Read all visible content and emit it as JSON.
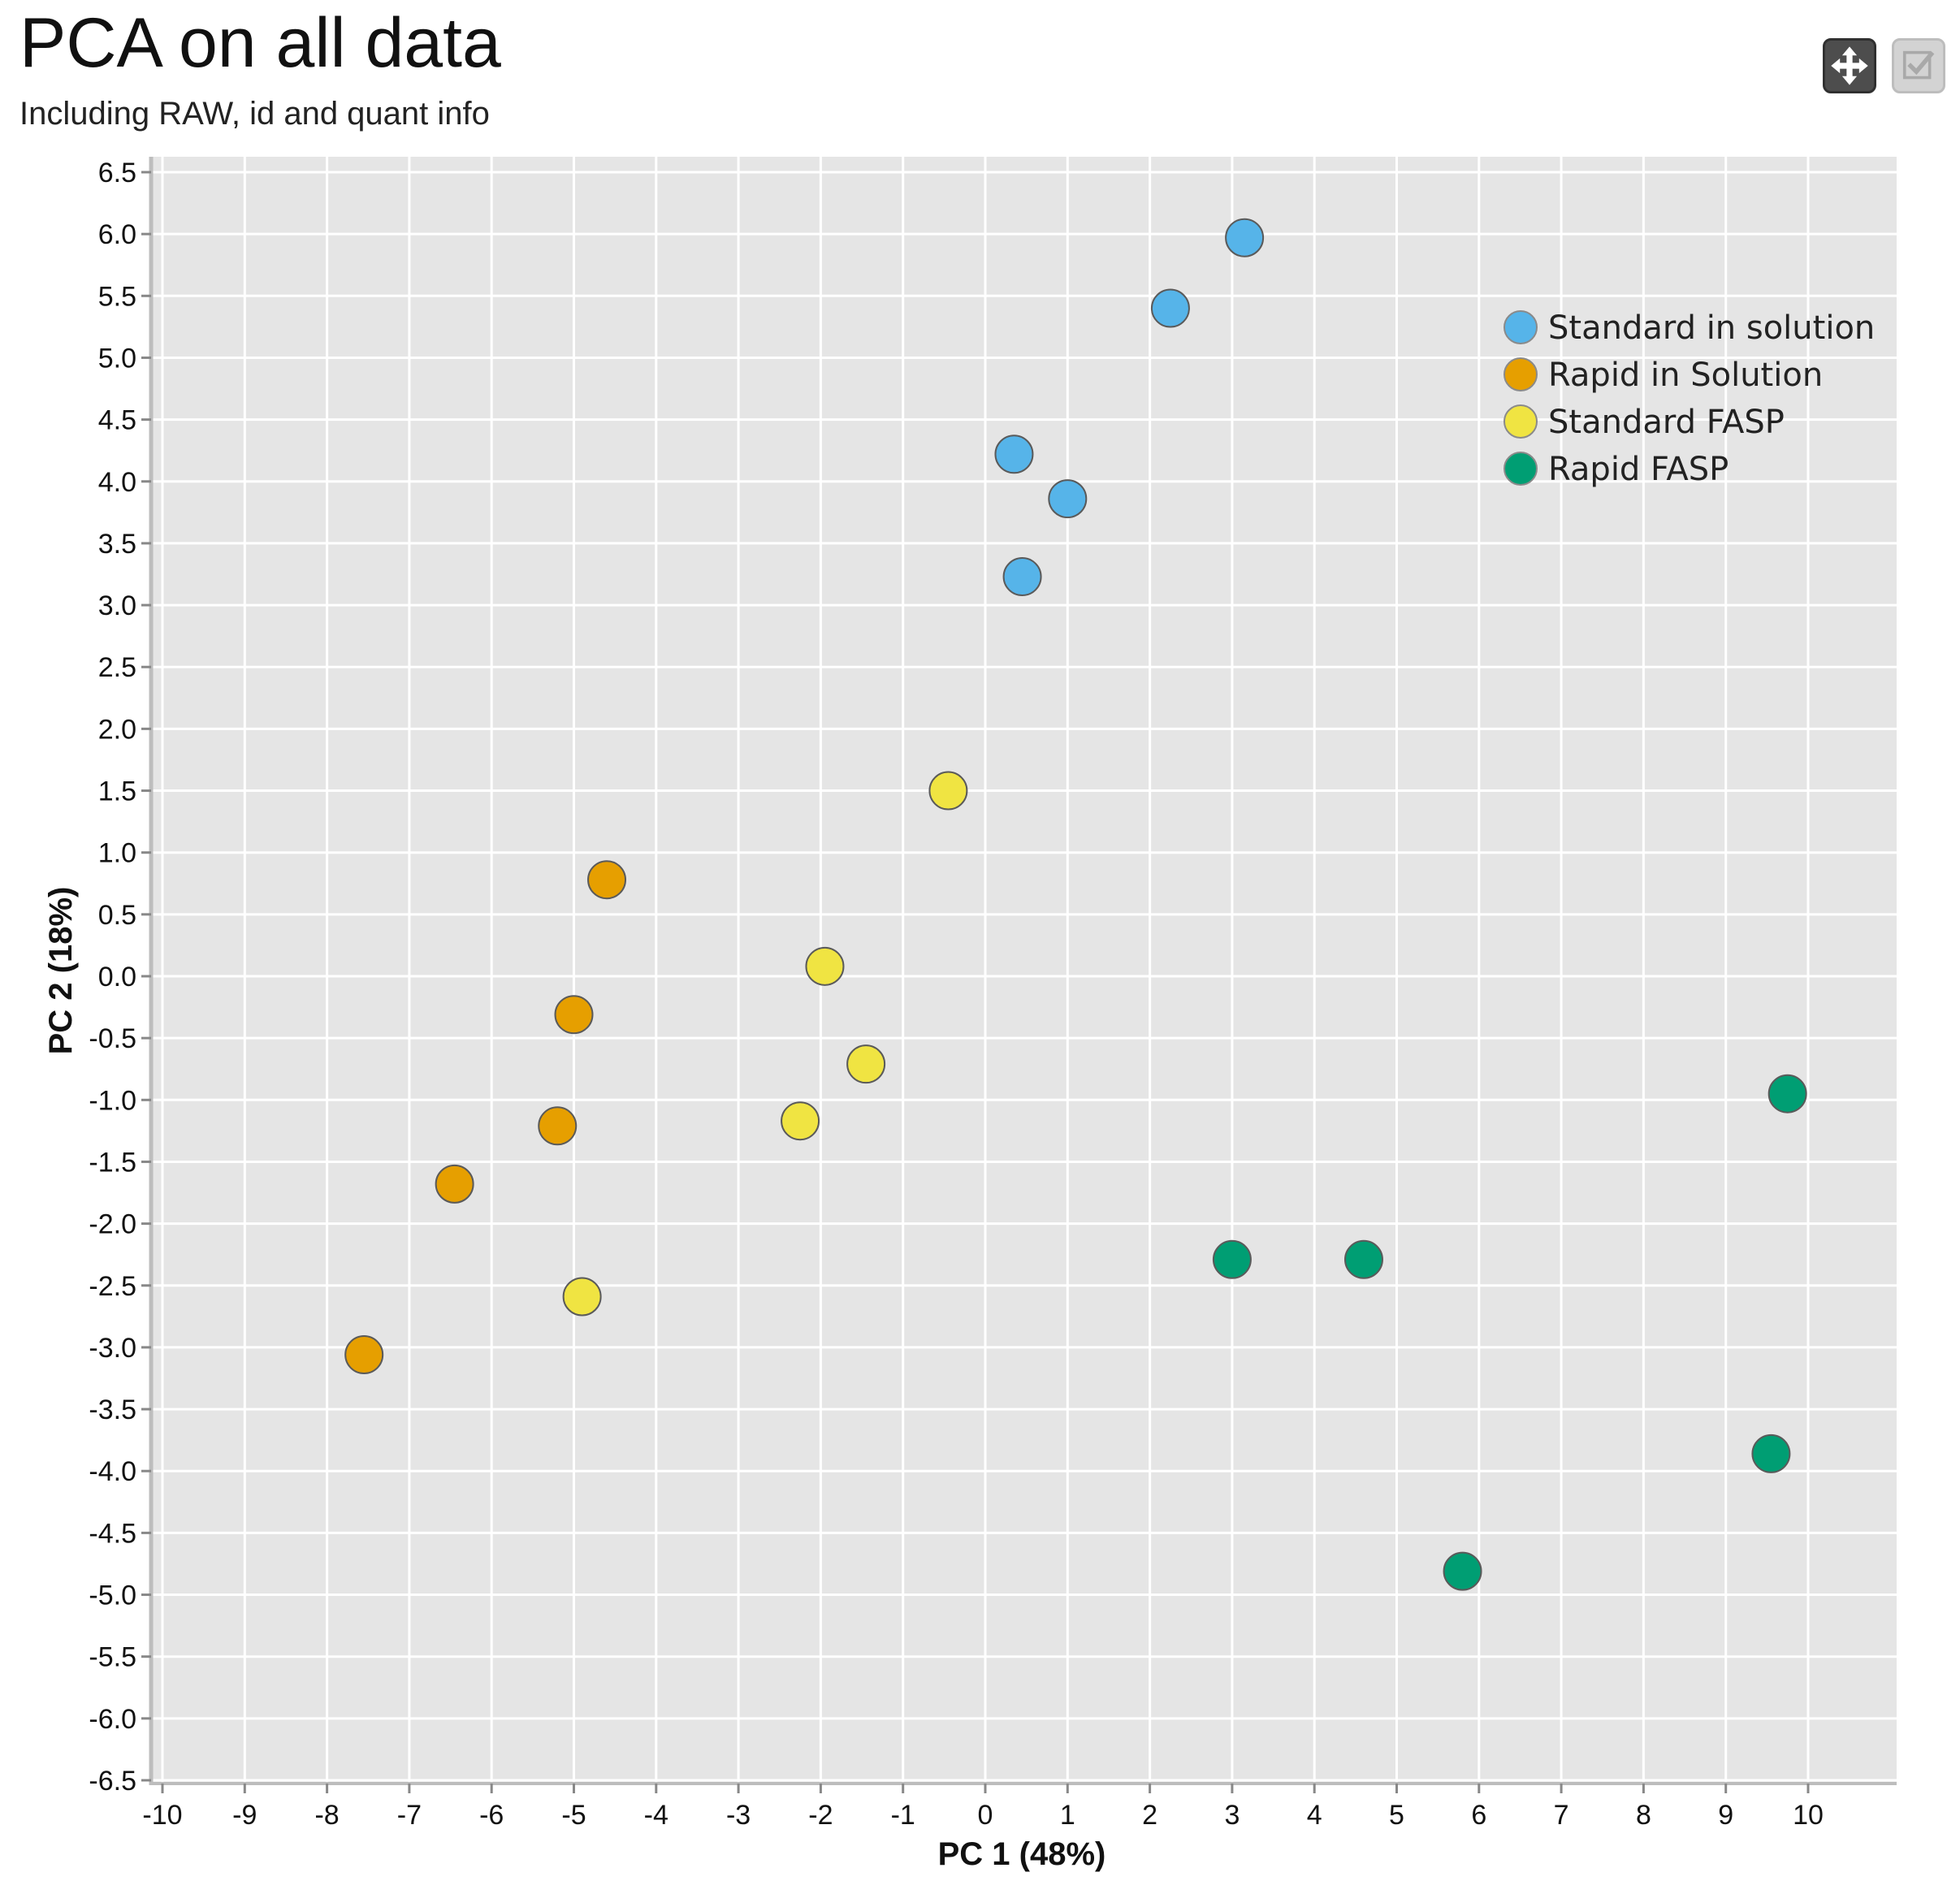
{
  "header": {
    "title": "PCA on all data",
    "subtitle": "Including RAW, id and quant info"
  },
  "toolbar": {
    "move_icon": "move-arrows-icon",
    "select_icon": "checkbox-icon"
  },
  "colors": {
    "plot_background": "#e5e5e5",
    "grid": "#ffffff",
    "Standard in solution": "#56b4e9",
    "Rapid in Solution": "#e69f00",
    "Standard FASP": "#f0e442",
    "Rapid FASP": "#009e73"
  },
  "chart_data": {
    "type": "scatter",
    "title": "PCA on all data",
    "subtitle": "Including RAW, id and quant info",
    "xlabel": "PC 1 (48%)",
    "ylabel": "PC 2 (18%)",
    "xlim": [
      -10.2,
      11.0
    ],
    "ylim": [
      -6.5,
      6.6
    ],
    "xticks": [
      -10,
      -9,
      -8,
      -7,
      -6,
      -5,
      -4,
      -3,
      -2,
      -1,
      0,
      1,
      2,
      3,
      4,
      5,
      6,
      7,
      8,
      9,
      10
    ],
    "yticks": [
      "6.5",
      "6.0",
      "5.5",
      "5.0",
      "4.5",
      "4.0",
      "3.5",
      "3.0",
      "2.5",
      "2.0",
      "1.5",
      "1.0",
      "0.5",
      "0.0",
      "-0.5",
      "-1.0",
      "-1.5",
      "-2.0",
      "-2.5",
      "-3.0",
      "-3.5",
      "-4.0",
      "-4.5",
      "-5.0",
      "-5.5",
      "-6.0",
      "-6.5"
    ],
    "grid": true,
    "legend_position": "top-right",
    "series": [
      {
        "name": "Standard in solution",
        "x": [
          3.15,
          2.25,
          0.35,
          1.0,
          0.45
        ],
        "y": [
          5.97,
          5.4,
          4.22,
          3.86,
          3.23
        ]
      },
      {
        "name": "Rapid in Solution",
        "x": [
          -4.6,
          -5.0,
          -5.2,
          -6.45,
          -7.55
        ],
        "y": [
          0.78,
          -0.31,
          -1.21,
          -1.68,
          -3.06
        ]
      },
      {
        "name": "Standard FASP",
        "x": [
          -0.45,
          -1.95,
          -1.45,
          -2.25,
          -4.9
        ],
        "y": [
          1.5,
          0.08,
          -0.71,
          -1.17,
          -2.59
        ]
      },
      {
        "name": "Rapid FASP",
        "x": [
          9.75,
          3.0,
          4.6,
          9.55,
          5.8
        ],
        "y": [
          -0.95,
          -2.29,
          -2.29,
          -3.86,
          -4.81
        ]
      }
    ]
  }
}
